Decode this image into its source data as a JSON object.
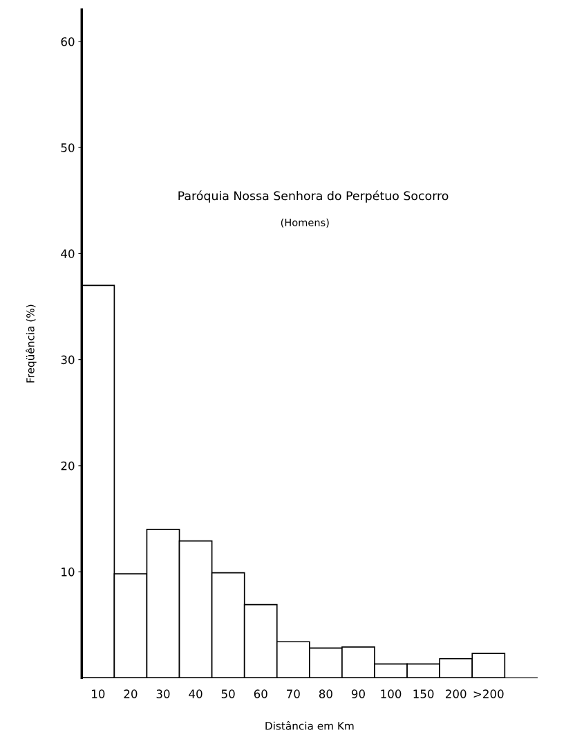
{
  "chart_data": {
    "type": "bar",
    "title": "Paróquia Nossa Senhora do Perpétuo Socorro",
    "subtitle": "(Homens)",
    "xlabel": "Distância em Km",
    "ylabel": "Freqüência (%)",
    "categories": [
      "10",
      "20",
      "30",
      "40",
      "50",
      "60",
      "70",
      "80",
      "90",
      "100",
      "150",
      "200",
      ">200"
    ],
    "values": [
      37,
      9.8,
      14.0,
      12.9,
      9.9,
      6.9,
      3.4,
      2.8,
      2.9,
      1.3,
      1.3,
      1.8,
      2.3
    ],
    "color": "#ffffff",
    "ylim": [
      0,
      63
    ],
    "yticks": [
      10,
      20,
      30,
      40,
      50,
      60
    ],
    "grid": false
  }
}
